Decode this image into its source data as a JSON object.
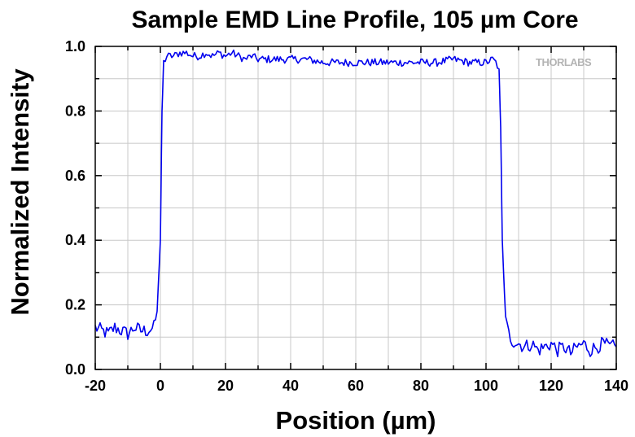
{
  "chart_data": {
    "type": "line",
    "title": "Sample EMD Line Profile, 105 µm Core",
    "xlabel": "Position (µm)",
    "ylabel": "Normalized Intensity",
    "xlim": [
      -20,
      140
    ],
    "ylim": [
      0.0,
      1.0
    ],
    "x_ticks": [
      "-20",
      "0",
      "20",
      "40",
      "60",
      "80",
      "100",
      "120",
      "140"
    ],
    "y_ticks": [
      "0.0",
      "0.2",
      "0.4",
      "0.6",
      "0.8",
      "1.0"
    ],
    "grid": true,
    "watermark": "THORLABS",
    "series": [
      {
        "color": "#0000ee",
        "x": [
          -20,
          -18,
          -16,
          -14,
          -12,
          -10,
          -8,
          -6,
          -4,
          -2,
          -1,
          0,
          0.5,
          1,
          2,
          4,
          6,
          8,
          10,
          12,
          14,
          16,
          18,
          20,
          22,
          24,
          26,
          28,
          30,
          35,
          40,
          45,
          50,
          55,
          60,
          65,
          70,
          75,
          80,
          85,
          90,
          95,
          100,
          102,
          103,
          104,
          104.5,
          105,
          106,
          107,
          108,
          110,
          112,
          114,
          116,
          118,
          120,
          122,
          124,
          126,
          128,
          130,
          132,
          134,
          136,
          138,
          140
        ],
        "y": [
          0.13,
          0.12,
          0.11,
          0.13,
          0.12,
          0.11,
          0.13,
          0.12,
          0.12,
          0.13,
          0.18,
          0.4,
          0.8,
          0.95,
          0.97,
          0.97,
          0.98,
          0.98,
          0.97,
          0.97,
          0.98,
          0.97,
          0.98,
          0.97,
          0.98,
          0.97,
          0.96,
          0.97,
          0.96,
          0.96,
          0.96,
          0.96,
          0.95,
          0.95,
          0.95,
          0.95,
          0.95,
          0.95,
          0.95,
          0.95,
          0.96,
          0.95,
          0.95,
          0.96,
          0.95,
          0.93,
          0.75,
          0.4,
          0.15,
          0.11,
          0.09,
          0.08,
          0.07,
          0.08,
          0.06,
          0.07,
          0.08,
          0.06,
          0.07,
          0.05,
          0.07,
          0.08,
          0.06,
          0.07,
          0.08,
          0.07,
          0.07
        ]
      }
    ]
  }
}
